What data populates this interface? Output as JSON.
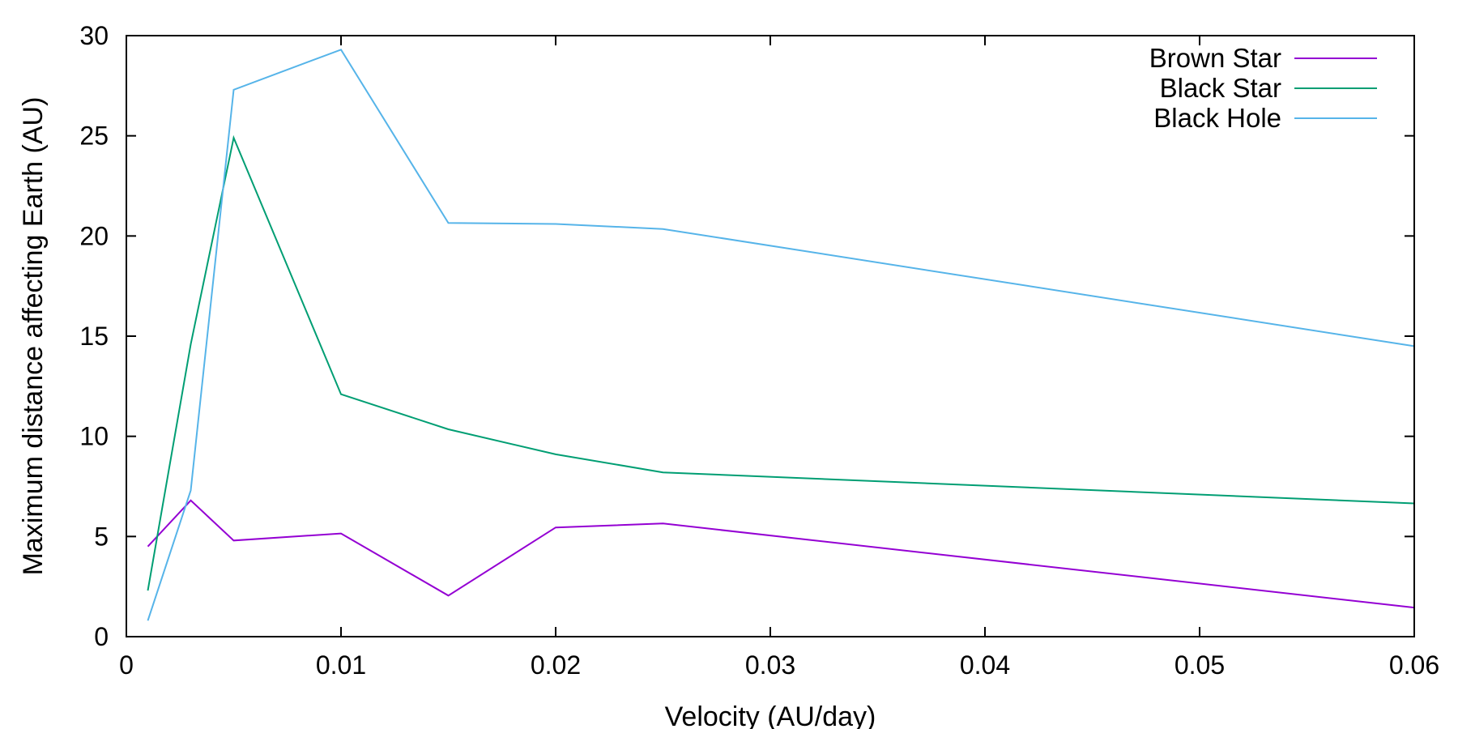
{
  "chart_data": {
    "type": "line",
    "title": "",
    "xlabel": "Velocity (AU/day)",
    "ylabel": "Maximum distance affecting Earth (AU)",
    "xlim": [
      0,
      0.06
    ],
    "ylim": [
      0,
      30
    ],
    "xticks": [
      0,
      0.01,
      0.02,
      0.03,
      0.04,
      0.05,
      0.06
    ],
    "xtick_labels": [
      "0",
      "0.01",
      "0.02",
      "0.03",
      "0.04",
      "0.05",
      "0.06"
    ],
    "yticks": [
      0,
      5,
      10,
      15,
      20,
      25,
      30
    ],
    "ytick_labels": [
      "0",
      "5",
      "10",
      "15",
      "20",
      "25",
      "30"
    ],
    "grid": false,
    "legend_position": "top-right",
    "x": [
      0.001,
      0.003,
      0.005,
      0.01,
      0.015,
      0.02,
      0.025,
      0.06
    ],
    "series": [
      {
        "name": "Brown Star",
        "color": "#9400d3",
        "values": [
          4.5,
          6.8,
          4.8,
          5.15,
          2.05,
          5.45,
          5.65,
          1.45
        ]
      },
      {
        "name": "Black Star",
        "color": "#009e73",
        "values": [
          2.3,
          14.6,
          24.9,
          12.1,
          10.35,
          9.1,
          8.2,
          6.65
        ]
      },
      {
        "name": "Black Hole",
        "color": "#56b4e9",
        "values": [
          0.8,
          7.3,
          27.3,
          29.3,
          20.65,
          20.6,
          20.35,
          14.5
        ]
      }
    ]
  }
}
